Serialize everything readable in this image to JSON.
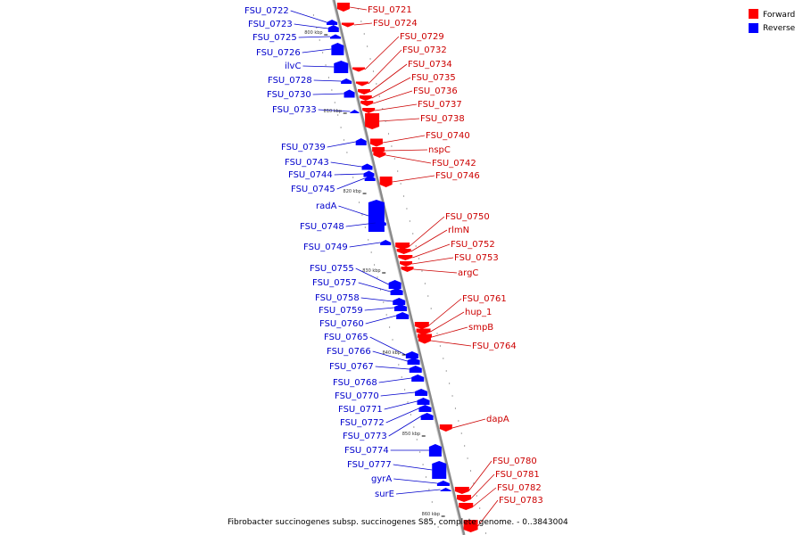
{
  "colors": {
    "forward": "#ff0000",
    "reverse": "#0000ff",
    "backbone": "#8a8a8a",
    "label_forward": "#cc0000",
    "label_reverse": "#0000cc"
  },
  "legend": {
    "forward_label": "Forward",
    "reverse_label": "Reverse"
  },
  "caption": "Fibrobacter succinogenes subsp. succinogenes S85, complete genome. - 0..3843004",
  "scale_ticks": [
    "800 kbp",
    "810 kbp",
    "820 kbp",
    "830 kbp",
    "840 kbp",
    "850 kbp",
    "860 kbp"
  ],
  "genes": {
    "forward": [
      "FSU_0721",
      "FSU_0724",
      "FSU_0729",
      "FSU_0732",
      "FSU_0734",
      "FSU_0735",
      "FSU_0736",
      "FSU_0737",
      "FSU_0738",
      "FSU_0740",
      "nspC",
      "FSU_0742",
      "FSU_0746",
      "FSU_0750",
      "rlmN",
      "FSU_0752",
      "FSU_0753",
      "argC",
      "FSU_0761",
      "hup_1",
      "smpB",
      "FSU_0764",
      "dapA",
      "FSU_0780",
      "FSU_0781",
      "FSU_0782",
      "FSU_0783"
    ],
    "reverse": [
      "FSU_0722",
      "FSU_0723",
      "FSU_0725",
      "FSU_0726",
      "ilvC",
      "FSU_0728",
      "FSU_0730",
      "FSU_0733",
      "FSU_0739",
      "FSU_0743",
      "FSU_0744",
      "FSU_0745",
      "radA",
      "FSU_0748",
      "FSU_0749",
      "FSU_0755",
      "FSU_0757",
      "FSU_0758",
      "FSU_0759",
      "FSU_0760",
      "FSU_0765",
      "FSU_0766",
      "FSU_0767",
      "FSU_0768",
      "FSU_0770",
      "FSU_0771",
      "FSU_0772",
      "FSU_0773",
      "FSU_0774",
      "FSU_0777",
      "gyrA",
      "surE"
    ]
  }
}
